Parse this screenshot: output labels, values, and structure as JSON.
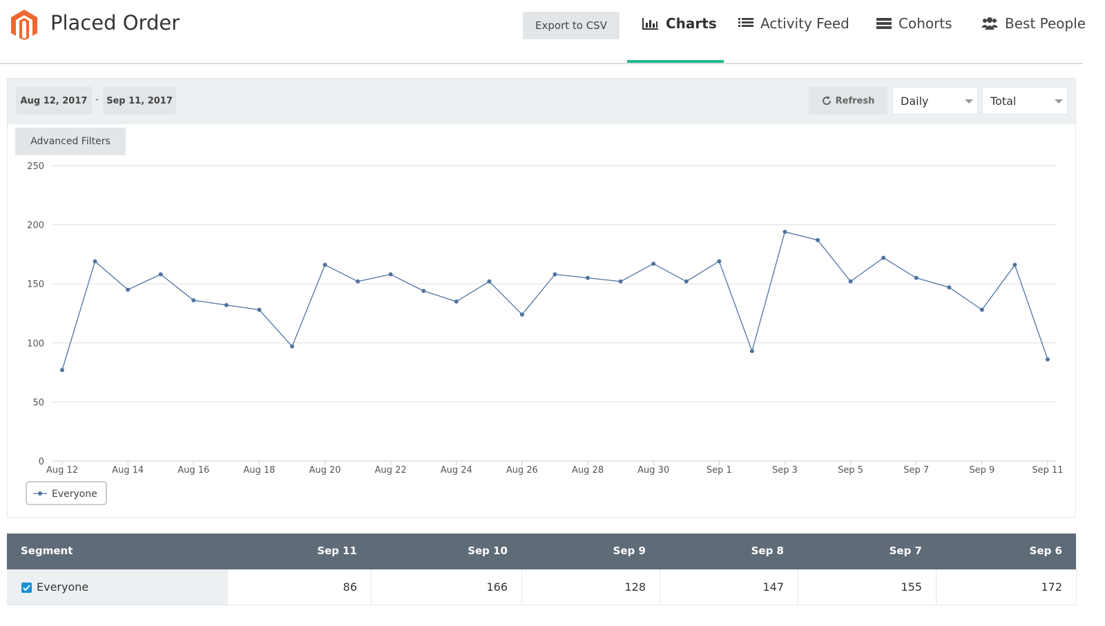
{
  "header": {
    "title": "Placed Order",
    "export": "Export to CSV",
    "tabs": [
      "Charts",
      "Activity Feed",
      "Cohorts",
      "Best People"
    ]
  },
  "filters": {
    "start": "Aug 12, 2017",
    "separator": "-",
    "end": "Sep 11, 2017",
    "refresh": "Refresh",
    "interval": "Daily",
    "metric": "Total",
    "advanced": "Advanced Filters"
  },
  "chart_data": {
    "type": "line",
    "categories": [
      "Aug 12",
      null,
      "Aug 14",
      null,
      "Aug 16",
      null,
      "Aug 18",
      null,
      "Aug 20",
      null,
      "Aug 22",
      null,
      "Aug 24",
      null,
      "Aug 26",
      null,
      "Aug 28",
      null,
      "Aug 30",
      null,
      "Sep 1",
      null,
      "Sep 3",
      null,
      "Sep 5",
      null,
      "Sep 7",
      null,
      "Sep 9",
      null,
      "Sep 11"
    ],
    "series": [
      {
        "name": "Everyone",
        "color": "#4f73a0",
        "values": [
          77,
          169,
          145,
          158,
          136,
          132,
          128,
          97,
          166,
          152,
          158,
          144,
          135,
          152,
          124,
          158,
          155,
          152,
          167,
          152,
          169,
          93,
          194,
          187,
          152,
          172,
          155,
          147,
          128,
          166,
          86
        ]
      }
    ],
    "ylim": [
      0,
      250
    ],
    "yticks": [
      0,
      50,
      100,
      150,
      200,
      250
    ],
    "grid": true
  },
  "table": {
    "headers": [
      "Segment",
      "Sep 11",
      "Sep 10",
      "Sep 9",
      "Sep 8",
      "Sep 7",
      "Sep 6"
    ],
    "rows": [
      [
        "Everyone",
        86,
        166,
        128,
        147,
        155,
        172
      ]
    ]
  }
}
